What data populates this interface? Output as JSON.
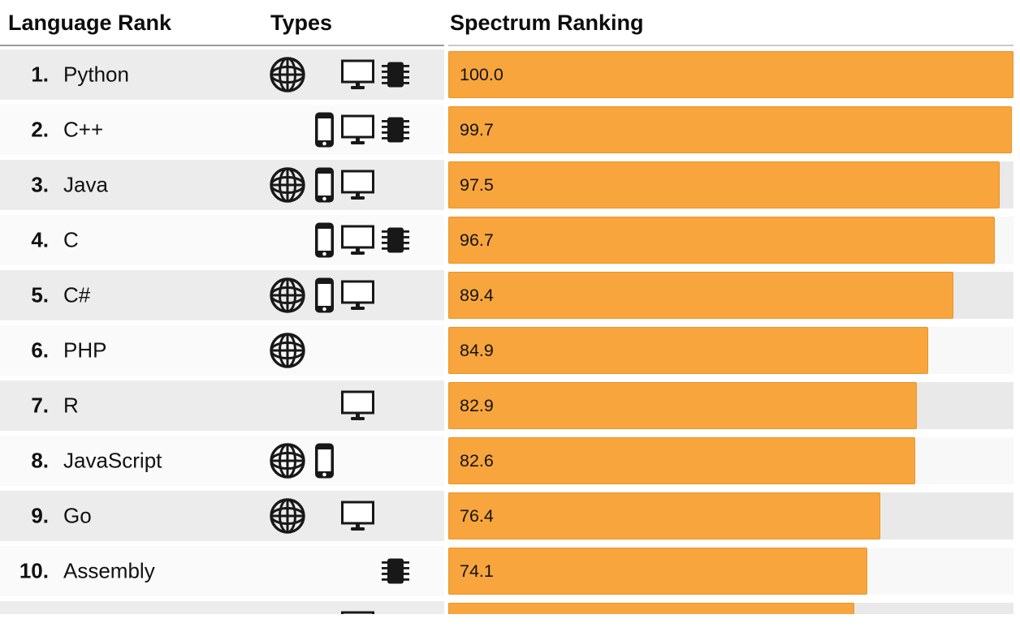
{
  "header": {
    "col_language_rank": "Language Rank",
    "col_types": "Types",
    "col_spectrum_ranking": "Spectrum Ranking"
  },
  "icon_legend": {
    "globe-icon": "web",
    "phone-icon": "mobile",
    "monitor-icon": "desktop-enterprise",
    "chip-icon": "embedded"
  },
  "colors": {
    "bar": "#f7a53c",
    "bar_border": "#e99527",
    "row_odd_bg": "#ececec",
    "row_even_bg": "#fafafa",
    "track_odd_bg": "#e9e9e9",
    "track_even_bg": "#f8f8f8",
    "text": "#111111",
    "header_rule_left": "#9a9a9a",
    "header_rule_right": "#c9c9c9"
  },
  "chart_data": {
    "type": "bar",
    "orientation": "horizontal",
    "title": "Spectrum Ranking",
    "xlim": [
      0,
      100
    ],
    "legend_position": "none",
    "grid": false,
    "categories": [
      "Python",
      "C++",
      "Java",
      "C",
      "C#",
      "PHP",
      "R",
      "JavaScript",
      "Go",
      "Assembly"
    ],
    "values": [
      100.0,
      99.7,
      97.5,
      96.7,
      89.4,
      84.9,
      82.9,
      82.6,
      76.4,
      74.1
    ],
    "rows": [
      {
        "rank": "1.",
        "language": "Python",
        "types": [
          "web",
          "desktop",
          "embedded"
        ],
        "value": 100.0,
        "label": "100.0"
      },
      {
        "rank": "2.",
        "language": "C++",
        "types": [
          "mobile",
          "desktop",
          "embedded"
        ],
        "value": 99.7,
        "label": "99.7"
      },
      {
        "rank": "3.",
        "language": "Java",
        "types": [
          "web",
          "mobile",
          "desktop"
        ],
        "value": 97.5,
        "label": "97.5"
      },
      {
        "rank": "4.",
        "language": "C",
        "types": [
          "mobile",
          "desktop",
          "embedded"
        ],
        "value": 96.7,
        "label": "96.7"
      },
      {
        "rank": "5.",
        "language": "C#",
        "types": [
          "web",
          "mobile",
          "desktop"
        ],
        "value": 89.4,
        "label": "89.4"
      },
      {
        "rank": "6.",
        "language": "PHP",
        "types": [
          "web"
        ],
        "value": 84.9,
        "label": "84.9"
      },
      {
        "rank": "7.",
        "language": "R",
        "types": [
          "desktop"
        ],
        "value": 82.9,
        "label": "82.9"
      },
      {
        "rank": "8.",
        "language": "JavaScript",
        "types": [
          "web",
          "mobile"
        ],
        "value": 82.6,
        "label": "82.6"
      },
      {
        "rank": "9.",
        "language": "Go",
        "types": [
          "web",
          "desktop"
        ],
        "value": 76.4,
        "label": "76.4"
      },
      {
        "rank": "10.",
        "language": "Assembly",
        "types": [
          "embedded"
        ],
        "value": 74.1,
        "label": "74.1"
      },
      {
        "rank": "",
        "language": "",
        "types": [
          "desktop"
        ],
        "value": 71.8,
        "label": "",
        "partial": true
      }
    ]
  }
}
